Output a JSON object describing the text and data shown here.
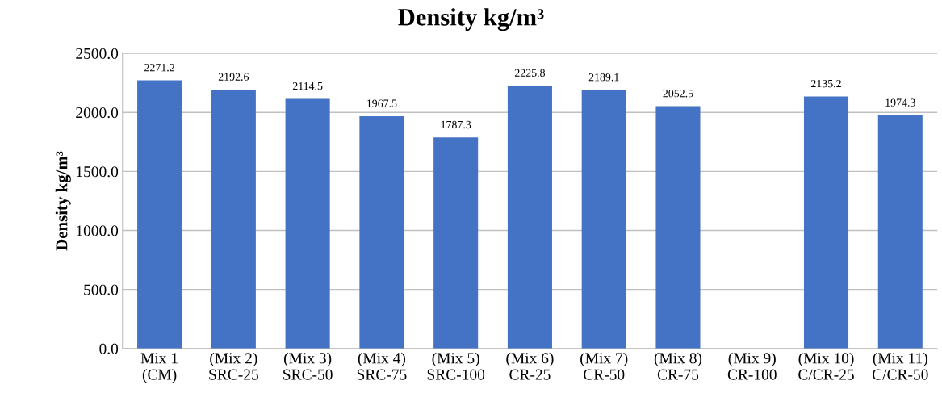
{
  "chart_data": {
    "type": "bar",
    "title": "Density kg/m³",
    "ylabel": "Density kg/m³",
    "categories": [
      "Mix 1\n(CM)",
      "(Mix 2)\nSRC-25",
      "(Mix 3)\nSRC-50",
      "(Mix 4)\nSRC-75",
      "(Mix 5)\nSRC-100",
      "(Mix 6)\nCR-25",
      "(Mix 7)\nCR-50",
      "(Mix 8)\nCR-75",
      "(Mix 9)\nCR-100",
      "(Mix 10)\nC/CR-25",
      "(Mix 11)\nC/CR-50"
    ],
    "values": [
      2271.2,
      2192.6,
      2114.5,
      1967.5,
      1787.3,
      2225.8,
      2189.1,
      2052.5,
      null,
      2135.2,
      1974.3
    ],
    "color": "#4472c4",
    "data_labels": true,
    "grid": "y",
    "ylim": [
      0,
      2500
    ],
    "yticks": [
      {
        "value": 0,
        "label": "0.0"
      },
      {
        "value": 500,
        "label": "500.0"
      },
      {
        "value": 1000,
        "label": "1000.0"
      },
      {
        "value": 1500,
        "label": "1500.0"
      },
      {
        "value": 2000,
        "label": "2000.0"
      },
      {
        "value": 2500,
        "label": "2500.0"
      }
    ]
  }
}
